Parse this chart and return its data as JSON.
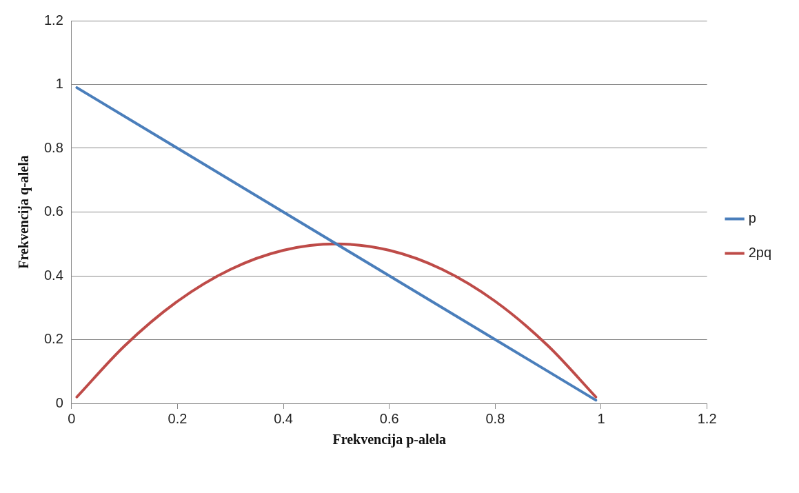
{
  "chart_data": {
    "type": "line",
    "xlabel": "Frekvencija p-alela",
    "ylabel": "Frekvencija q-alela",
    "xlim": [
      0,
      1.2
    ],
    "xticks": [
      0,
      0.2,
      0.4,
      0.6,
      0.8,
      1,
      1.2
    ],
    "ylim": [
      0,
      1.2
    ],
    "yticks": [
      0,
      0.2,
      0.4,
      0.6,
      0.8,
      1,
      1.2
    ],
    "grid": "y",
    "legend": "right",
    "marker": "none",
    "line_style": "solid",
    "series": [
      {
        "name": "p",
        "color": "#4a7ebb",
        "x": [
          0.01,
          0.99
        ],
        "values": [
          0.99,
          0.01
        ]
      },
      {
        "name": "2pq",
        "color": "#be4b48",
        "x": [
          0.01,
          0.1,
          0.2,
          0.3,
          0.4,
          0.5,
          0.6,
          0.7,
          0.8,
          0.9,
          0.99
        ],
        "values": [
          0.02,
          0.18,
          0.32,
          0.42,
          0.48,
          0.5,
          0.48,
          0.42,
          0.32,
          0.18,
          0.02
        ]
      }
    ]
  }
}
